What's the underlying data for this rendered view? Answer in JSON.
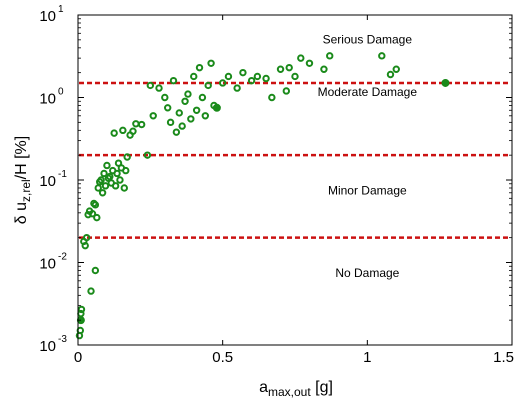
{
  "chart_data": {
    "type": "scatter",
    "title": "",
    "xlabel": {
      "main": "a",
      "sub": "max,out",
      "suffix": " [g]"
    },
    "ylabel": {
      "prefix": "δ u",
      "sub": "z,rel",
      "suffix": "/H [%]"
    },
    "xlim": [
      0,
      1.5
    ],
    "ylim": [
      0.001,
      10
    ],
    "yscale": "log",
    "x_ticks": [
      {
        "value": 0,
        "label": "0"
      },
      {
        "value": 0.5,
        "label": "0.5"
      },
      {
        "value": 1,
        "label": "1"
      },
      {
        "value": 1.5,
        "label": "1.5"
      }
    ],
    "y_ticks": [
      {
        "value": 0.001,
        "base": "10",
        "exp": "-3"
      },
      {
        "value": 0.01,
        "base": "10",
        "exp": "-2"
      },
      {
        "value": 0.1,
        "base": "10",
        "exp": "-1"
      },
      {
        "value": 1,
        "base": "10",
        "exp": "0"
      },
      {
        "value": 10,
        "base": "10",
        "exp": "1"
      }
    ],
    "grid": false,
    "marker_color": "#1a8a1a",
    "threshold_color": "#cc1111",
    "thresholds": [
      {
        "value": 1.5,
        "label": ""
      },
      {
        "value": 0.2,
        "label": ""
      },
      {
        "value": 0.02,
        "label": ""
      }
    ],
    "annotations": [
      {
        "text": "Serious Damage",
        "x": 1.0,
        "y": 4.5
      },
      {
        "text": "Moderate Damage",
        "x": 1.0,
        "y": 1.05
      },
      {
        "text": "Minor Damage",
        "x": 1.0,
        "y": 0.067
      },
      {
        "text": "No Damage",
        "x": 1.0,
        "y": 0.0067
      }
    ],
    "points": [
      [
        0.005,
        0.0013
      ],
      [
        0.008,
        0.0015
      ],
      [
        0.01,
        0.002
      ],
      [
        0.01,
        0.0024
      ],
      [
        0.012,
        0.0027
      ],
      [
        0.02,
        0.018
      ],
      [
        0.025,
        0.016
      ],
      [
        0.03,
        0.02
      ],
      [
        0.035,
        0.038
      ],
      [
        0.04,
        0.042
      ],
      [
        0.045,
        0.0045
      ],
      [
        0.05,
        0.039
      ],
      [
        0.055,
        0.052
      ],
      [
        0.06,
        0.008
      ],
      [
        0.06,
        0.05
      ],
      [
        0.065,
        0.035
      ],
      [
        0.07,
        0.08
      ],
      [
        0.075,
        0.095
      ],
      [
        0.08,
        0.1
      ],
      [
        0.085,
        0.07
      ],
      [
        0.09,
        0.12
      ],
      [
        0.095,
        0.085
      ],
      [
        0.1,
        0.15
      ],
      [
        0.105,
        0.105
      ],
      [
        0.11,
        0.11
      ],
      [
        0.115,
        0.092
      ],
      [
        0.12,
        0.13
      ],
      [
        0.125,
        0.37
      ],
      [
        0.13,
        0.085
      ],
      [
        0.135,
        0.12
      ],
      [
        0.14,
        0.16
      ],
      [
        0.145,
        0.1
      ],
      [
        0.15,
        0.14
      ],
      [
        0.155,
        0.4
      ],
      [
        0.16,
        0.08
      ],
      [
        0.165,
        0.13
      ],
      [
        0.17,
        0.19
      ],
      [
        0.18,
        0.35
      ],
      [
        0.19,
        0.39
      ],
      [
        0.2,
        0.48
      ],
      [
        0.22,
        0.47
      ],
      [
        0.24,
        0.2
      ],
      [
        0.25,
        1.4
      ],
      [
        0.26,
        0.6
      ],
      [
        0.28,
        1.3
      ],
      [
        0.3,
        1.0
      ],
      [
        0.31,
        0.75
      ],
      [
        0.32,
        0.5
      ],
      [
        0.33,
        1.6
      ],
      [
        0.34,
        0.38
      ],
      [
        0.35,
        0.65
      ],
      [
        0.36,
        0.45
      ],
      [
        0.37,
        0.9
      ],
      [
        0.38,
        1.1
      ],
      [
        0.39,
        0.55
      ],
      [
        0.4,
        1.8
      ],
      [
        0.41,
        0.7
      ],
      [
        0.42,
        2.3
      ],
      [
        0.43,
        1.0
      ],
      [
        0.44,
        0.6
      ],
      [
        0.45,
        1.4
      ],
      [
        0.46,
        2.6
      ],
      [
        0.47,
        0.8
      ],
      [
        0.48,
        0.75
      ],
      [
        0.5,
        1.5
      ],
      [
        0.52,
        1.8
      ],
      [
        0.55,
        1.3
      ],
      [
        0.57,
        2.0
      ],
      [
        0.6,
        1.6
      ],
      [
        0.62,
        1.8
      ],
      [
        0.65,
        1.7
      ],
      [
        0.67,
        1.0
      ],
      [
        0.7,
        2.2
      ],
      [
        0.72,
        1.2
      ],
      [
        0.73,
        2.3
      ],
      [
        0.75,
        1.8
      ],
      [
        0.77,
        3.0
      ],
      [
        0.8,
        2.6
      ],
      [
        0.85,
        2.2
      ],
      [
        0.87,
        3.2
      ],
      [
        1.05,
        3.2
      ],
      [
        1.08,
        1.9
      ],
      [
        1.1,
        2.2
      ],
      [
        1.27,
        1.5
      ]
    ],
    "filled_points": [
      [
        0.01,
        0.002
      ],
      [
        0.48,
        0.75
      ],
      [
        1.27,
        1.5
      ]
    ]
  }
}
